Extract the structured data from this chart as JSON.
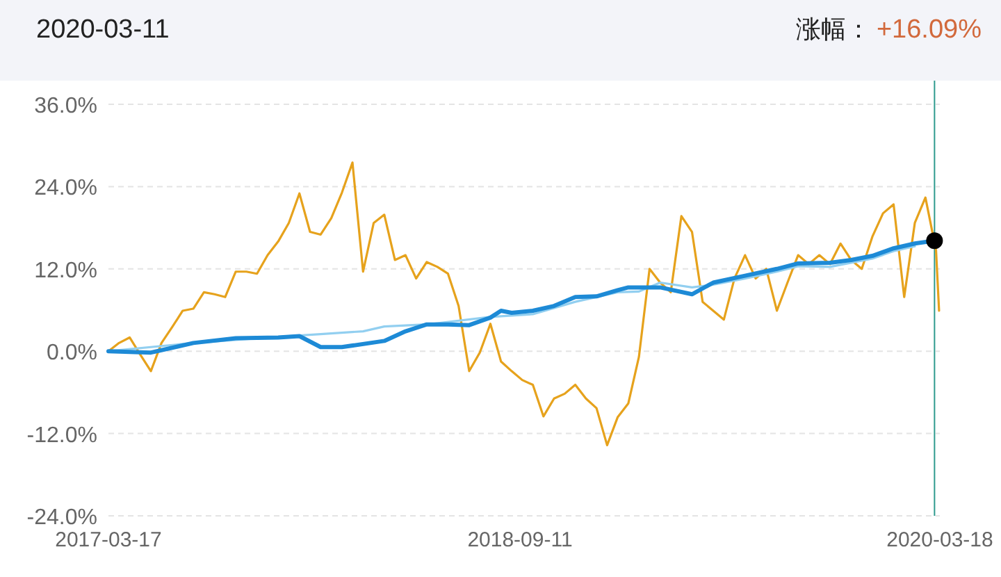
{
  "chart_data": {
    "type": "line",
    "title": "2020-03-11",
    "annotations": [
      "涨幅：",
      "+16.09%"
    ],
    "xlim": [
      "2017-03-17",
      "2020-03-18"
    ],
    "xticks": [
      "2017-03-17",
      "2018-09-11",
      "2020-03-18"
    ],
    "ylim": [
      -24,
      36
    ],
    "yticks": [
      {
        "value": -24,
        "label": "-24.0%"
      },
      {
        "value": -12,
        "label": "-12.0%"
      },
      {
        "value": 0,
        "label": "0.0%"
      },
      {
        "value": 12,
        "label": "12.0%"
      },
      {
        "value": 24,
        "label": "24.0%"
      },
      {
        "value": 36,
        "label": "36.0%"
      }
    ],
    "grid": "y",
    "marker": "none",
    "line_style": "solid",
    "ref_lines": [
      {
        "axis": "x",
        "value": "2020-03-11",
        "color": "#2e9a8e"
      }
    ],
    "series": [
      {
        "color": "#e6a21c",
        "x": [
          "2017-03-17",
          "2017-03-31",
          "2017-04-14",
          "2017-04-28",
          "2017-05-12",
          "2017-05-26",
          "2017-06-09",
          "2017-06-23",
          "2017-07-07",
          "2017-07-21",
          "2017-08-04",
          "2017-08-18",
          "2017-09-01",
          "2017-09-15",
          "2017-09-29",
          "2017-10-13",
          "2017-10-27",
          "2017-11-10",
          "2017-11-24",
          "2017-12-08",
          "2017-12-22",
          "2018-01-05",
          "2018-01-19",
          "2018-02-02",
          "2018-02-16",
          "2018-03-02",
          "2018-03-16",
          "2018-03-30",
          "2018-04-13",
          "2018-04-27",
          "2018-05-11",
          "2018-05-25",
          "2018-06-08",
          "2018-06-22",
          "2018-07-06",
          "2018-07-20",
          "2018-08-03",
          "2018-08-17",
          "2018-08-31",
          "2018-09-14",
          "2018-09-28",
          "2018-10-12",
          "2018-10-26",
          "2018-11-09",
          "2018-11-23",
          "2018-12-07",
          "2018-12-21",
          "2019-01-04",
          "2019-01-18",
          "2019-02-01",
          "2019-02-15",
          "2019-03-01",
          "2019-03-15",
          "2019-03-29",
          "2019-04-12",
          "2019-04-26",
          "2019-05-10",
          "2019-05-24",
          "2019-06-07",
          "2019-06-21",
          "2019-07-05",
          "2019-07-19",
          "2019-08-02",
          "2019-08-16",
          "2019-08-30",
          "2019-09-13",
          "2019-09-27",
          "2019-10-11",
          "2019-10-25",
          "2019-11-08",
          "2019-11-22",
          "2019-12-06",
          "2019-12-20",
          "2020-01-03",
          "2020-01-17",
          "2020-01-31",
          "2020-02-14",
          "2020-02-28",
          "2020-03-13",
          "2020-03-17"
        ],
        "values": [
          0,
          1.2,
          2.0,
          -0.5,
          -2.9,
          1.2,
          3.5,
          5.9,
          6.2,
          8.6,
          8.3,
          7.9,
          11.6,
          11.6,
          11.3,
          14.0,
          16.0,
          18.7,
          23.0,
          17.4,
          17.0,
          19.4,
          23.1,
          27.5,
          11.6,
          18.7,
          19.9,
          13.3,
          14.0,
          10.6,
          13.0,
          12.3,
          11.3,
          6.6,
          -2.9,
          -0.2,
          4.0,
          -1.5,
          -2.9,
          -4.2,
          -4.9,
          -9.5,
          -6.9,
          -6.2,
          -4.9,
          -6.9,
          -8.3,
          -13.7,
          -9.6,
          -7.6,
          -0.8,
          12.0,
          10.0,
          8.6,
          19.7,
          17.4,
          7.2,
          5.9,
          4.6,
          10.6,
          14.0,
          10.6,
          12.0,
          5.9,
          10.0,
          14.0,
          12.7,
          14.0,
          12.7,
          15.7,
          13.3,
          12.0,
          16.7,
          20.1,
          21.4,
          7.9,
          18.7,
          22.4,
          14.7,
          5.9
        ]
      },
      {
        "color": "#92cff0",
        "x": [
          "2017-03-17",
          "2017-07-07",
          "2017-10-27",
          "2017-12-22",
          "2018-02-16",
          "2018-03-16",
          "2018-05-11",
          "2018-08-03",
          "2018-09-28",
          "2018-11-23",
          "2019-01-18",
          "2019-02-15",
          "2019-03-15",
          "2019-04-26",
          "2019-05-24",
          "2019-07-05",
          "2019-08-16",
          "2019-09-13",
          "2019-10-25",
          "2019-11-22",
          "2019-12-20",
          "2020-01-17",
          "2020-02-14"
        ],
        "values": [
          0,
          1.2,
          2.1,
          2.5,
          2.9,
          3.6,
          3.9,
          5.0,
          5.4,
          7.2,
          8.6,
          8.7,
          10.0,
          9.3,
          9.7,
          10.6,
          11.6,
          12.4,
          12.3,
          12.9,
          13.5,
          14.6,
          15.3
        ]
      },
      {
        "color": "#1d8ad6",
        "x": [
          "2017-03-17",
          "2017-05-12",
          "2017-07-07",
          "2017-09-01",
          "2017-10-27",
          "2017-11-24",
          "2017-12-22",
          "2018-01-19",
          "2018-03-16",
          "2018-04-13",
          "2018-05-11",
          "2018-06-08",
          "2018-07-06",
          "2018-08-03",
          "2018-08-17",
          "2018-08-31",
          "2018-09-28",
          "2018-10-26",
          "2018-11-23",
          "2018-12-21",
          "2019-01-18",
          "2019-02-01",
          "2019-03-15",
          "2019-04-26",
          "2019-05-24",
          "2019-07-05",
          "2019-08-16",
          "2019-09-13",
          "2019-10-25",
          "2019-11-22",
          "2019-12-20",
          "2020-01-17",
          "2020-02-14",
          "2020-03-11"
        ],
        "values": [
          0,
          -0.2,
          1.2,
          1.9,
          2.0,
          2.2,
          0.6,
          0.6,
          1.5,
          2.9,
          3.9,
          3.9,
          3.8,
          4.9,
          5.9,
          5.6,
          5.9,
          6.6,
          7.9,
          8.0,
          8.9,
          9.3,
          9.3,
          8.3,
          10.0,
          11.0,
          12.0,
          12.8,
          12.9,
          13.3,
          13.9,
          15.0,
          15.7,
          16.1
        ]
      }
    ]
  }
}
